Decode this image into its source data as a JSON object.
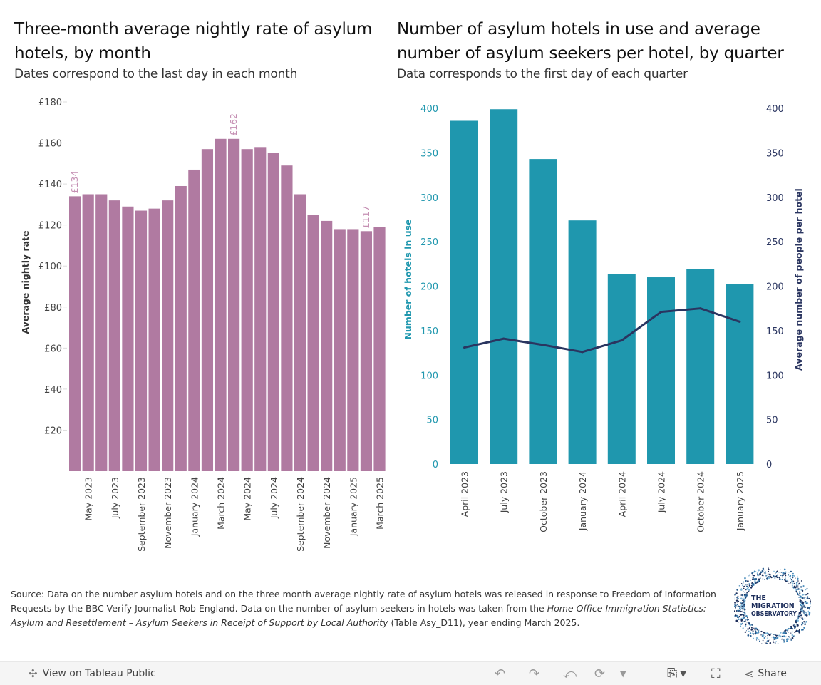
{
  "left_panel": {
    "title": "Three-month average nightly rate of asylum hotels, by month",
    "subtitle": "Dates correspond to the last day in each month"
  },
  "right_panel": {
    "title": "Number of asylum hotels in use and average number of asylum seekers per hotel, by quarter",
    "subtitle": "Data corresponds to the first day of each quarter"
  },
  "chart_data": [
    {
      "type": "bar",
      "title": "Three-month average nightly rate of asylum hotels, by month",
      "xlabel": "",
      "ylabel": "Average nightly rate",
      "ylim": [
        0,
        180
      ],
      "yticks": [
        20,
        40,
        60,
        80,
        100,
        120,
        140,
        160,
        180
      ],
      "ytick_labels": [
        "£20",
        "£40",
        "£60",
        "£80",
        "£100",
        "£120",
        "£140",
        "£160",
        "£180"
      ],
      "color": "#b07aa1",
      "label_color": "#c58fb3",
      "grid": false,
      "categories": [
        "April 2023",
        "May 2023",
        "June 2023",
        "July 2023",
        "August 2023",
        "September 2023",
        "October 2023",
        "November 2023",
        "December 2023",
        "January 2024",
        "February 2024",
        "March 2024",
        "April 2024",
        "May 2024",
        "June 2024",
        "July 2024",
        "August 2024",
        "September 2024",
        "October 2024",
        "November 2024",
        "December 2024",
        "January 2025",
        "February 2025",
        "March 2025"
      ],
      "xtick_labels_shown": [
        "May 2023",
        "July 2023",
        "September 2023",
        "November 2023",
        "January 2024",
        "March 2024",
        "May 2024",
        "July 2024",
        "September 2024",
        "November 2024",
        "January 2025",
        "March 2025"
      ],
      "values": [
        134,
        135,
        135,
        132,
        129,
        127,
        128,
        132,
        139,
        147,
        157,
        162,
        162,
        157,
        158,
        155,
        149,
        135,
        125,
        122,
        118,
        118,
        117,
        119
      ],
      "annotations": [
        {
          "category": "April 2023",
          "text": "£134"
        },
        {
          "category": "April 2024",
          "text": "£162"
        },
        {
          "category": "February 2025",
          "text": "£117"
        }
      ]
    },
    {
      "type": "bar+line",
      "title": "Number of asylum hotels in use and average number of asylum seekers per hotel, by quarter",
      "categories": [
        "April 2023",
        "July 2023",
        "October 2023",
        "January 2024",
        "April 2024",
        "July 2024",
        "October 2024",
        "January 2025"
      ],
      "series": [
        {
          "name": "Number of hotels in use",
          "type": "bar",
          "axis": "left",
          "color": "#1f97ae",
          "values": [
            386,
            399,
            343,
            274,
            214,
            210,
            219,
            202
          ]
        },
        {
          "name": "Average number of people per hotel",
          "type": "line",
          "axis": "right",
          "color": "#2a3560",
          "values": [
            131,
            141,
            134,
            126,
            139,
            171,
            175,
            160
          ]
        }
      ],
      "ylabel_left": "Number of hotels in use",
      "ylabel_right": "Average number of people per hotel",
      "ylim_left": [
        0,
        400
      ],
      "ylim_right": [
        0,
        400
      ],
      "yticks": [
        0,
        50,
        100,
        150,
        200,
        250,
        300,
        350,
        400
      ],
      "left_axis_color": "#1f97ae",
      "right_axis_color": "#2a3560",
      "grid": false
    }
  ],
  "source": {
    "part1": "Source: Data on the number asylum hotels and on the three month average nightly rate of asylum hotels was released in response to Freedom of Information Requests by the BBC Verify Journalist Rob England. Data on the number of asylum seekers in hotels was taken from the ",
    "italic": "Home Office Immigration Statistics: Asylum and Resettlement – Asylum Seekers in Receipt of Support by Local Authority",
    "part2": " (Table Asy_D11), year ending March 2025."
  },
  "logo": {
    "line1": "THE",
    "line2": "MIGRATION",
    "line3": "OBSERVATORY"
  },
  "toolbar": {
    "view_label": "View on Tableau Public",
    "share_label": "Share",
    "icons": [
      "undo-icon",
      "redo-icon",
      "revert-icon",
      "refresh-icon",
      "dropdown-icon",
      "download-icon",
      "fullscreen-icon",
      "share-icon"
    ]
  }
}
